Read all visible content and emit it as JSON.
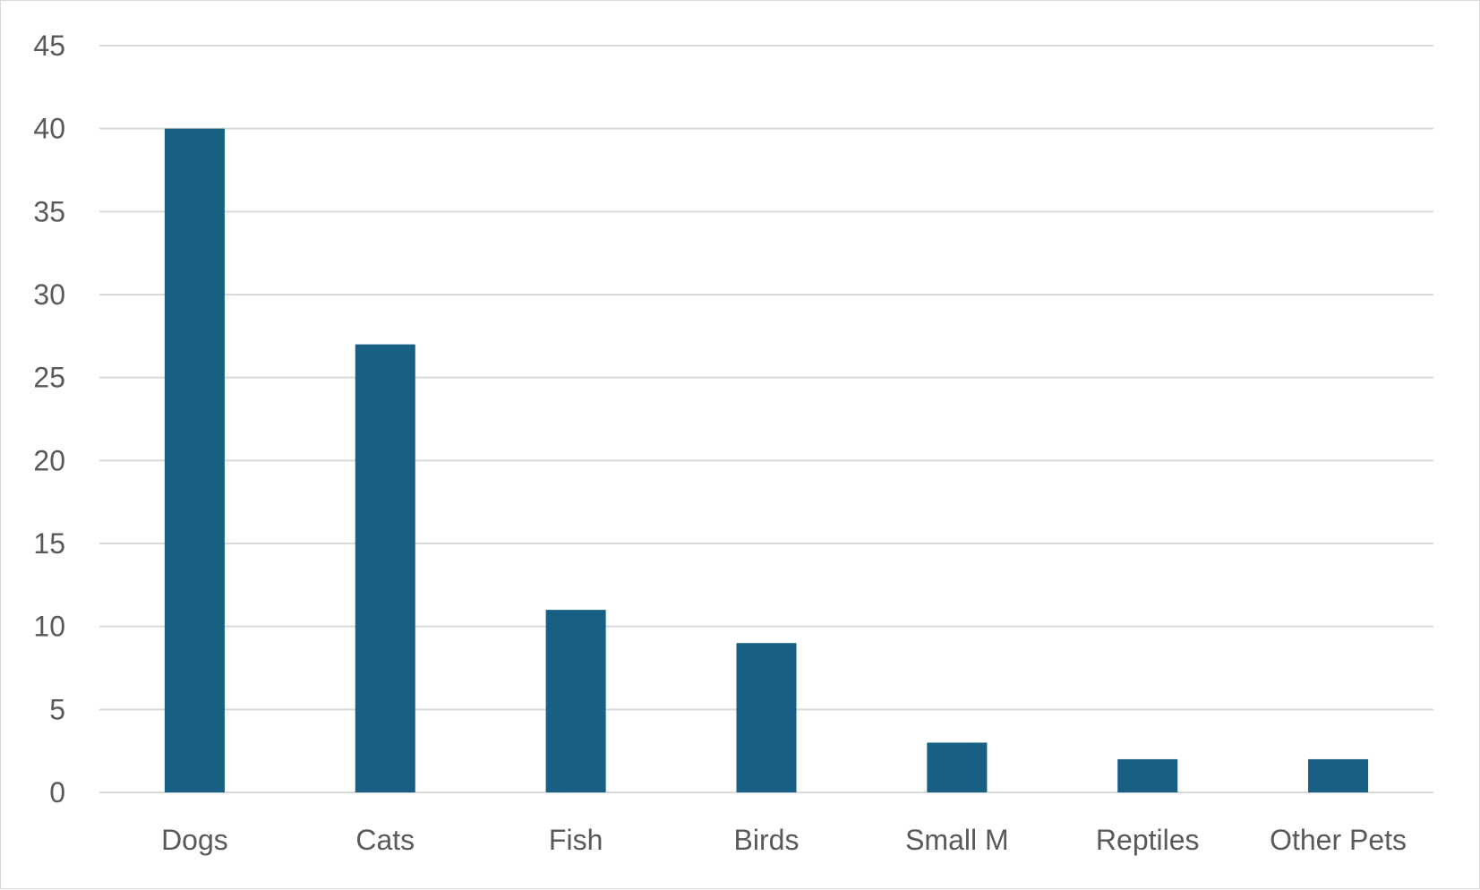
{
  "chart_data": {
    "type": "bar",
    "categories": [
      "Dogs",
      "Cats",
      "Fish",
      "Birds",
      "Small M",
      "Reptiles",
      "Other Pets"
    ],
    "values": [
      40,
      27,
      11,
      9,
      3,
      2,
      2
    ],
    "title": "",
    "xlabel": "",
    "ylabel": "",
    "ylim": [
      0,
      45
    ],
    "yticks": [
      0,
      5,
      10,
      15,
      20,
      25,
      30,
      35,
      40,
      45
    ],
    "grid": true,
    "legend": "none",
    "bar_color": "#186083",
    "grid_color": "#d9d9d9",
    "label_color": "#595959"
  }
}
